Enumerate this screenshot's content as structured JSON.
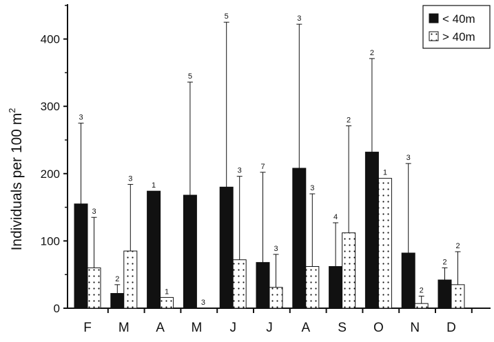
{
  "chart_data": {
    "type": "bar",
    "categories": [
      "F",
      "M",
      "A",
      "M",
      "J",
      "J",
      "A",
      "S",
      "O",
      "N",
      "D"
    ],
    "ylabel": "Individuals per 100 m",
    "ylabel_superscript": "2",
    "ylim": [
      0,
      450
    ],
    "yticks": [
      0,
      100,
      200,
      300,
      400
    ],
    "legend_position": "top-right",
    "series": [
      {
        "name": "< 40m",
        "fill": "solid-black",
        "values": [
          155,
          22,
          174,
          168,
          180,
          68,
          208,
          62,
          232,
          82,
          42
        ],
        "error_upper": [
          275,
          35,
          null,
          336,
          425,
          202,
          422,
          127,
          371,
          215,
          60
        ],
        "n_labels": [
          "3",
          "2",
          "1",
          "5",
          "5",
          "7",
          "3",
          "4",
          "2",
          "3",
          "2"
        ]
      },
      {
        "name": "> 40m",
        "fill": "white-dotted",
        "values": [
          60,
          85,
          16,
          0,
          72,
          31,
          62,
          112,
          193,
          7,
          35
        ],
        "error_upper": [
          135,
          184,
          null,
          null,
          196,
          80,
          170,
          271,
          null,
          18,
          84
        ],
        "n_labels": [
          "3",
          "3",
          "1",
          "3",
          "3",
          "3",
          "3",
          "2",
          "1",
          "2",
          "2"
        ]
      }
    ],
    "colors": {
      "bar_dark": "#111111",
      "bar_light": "#ffffff",
      "axis": "#111111"
    }
  }
}
